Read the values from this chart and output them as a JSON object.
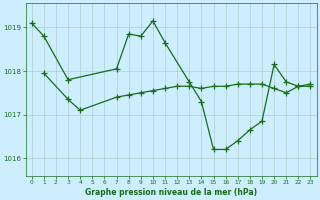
{
  "title": "Graphe pression niveau de la mer (hPa)",
  "bg_color": "#cceeff",
  "grid_color": "#b0cccc",
  "line_color": "#1a6b1a",
  "xlim": [
    -0.5,
    23.5
  ],
  "ylim": [
    1015.6,
    1019.55
  ],
  "yticks": [
    1016,
    1017,
    1018,
    1019
  ],
  "xticks": [
    0,
    1,
    2,
    3,
    4,
    5,
    6,
    7,
    8,
    9,
    10,
    11,
    12,
    13,
    14,
    15,
    16,
    17,
    18,
    19,
    20,
    21,
    22,
    23
  ],
  "line1_x": [
    0,
    1,
    3,
    7,
    8,
    9,
    10,
    11,
    13,
    14,
    15,
    16,
    17,
    18,
    19,
    20,
    21,
    22,
    23
  ],
  "line1_y": [
    1019.1,
    1018.8,
    1017.8,
    1018.05,
    1018.85,
    1018.8,
    1019.15,
    1018.65,
    1017.75,
    1017.3,
    1016.2,
    1016.2,
    1016.4,
    1016.65,
    1016.85,
    1018.15,
    1017.75,
    1017.65,
    1017.65
  ],
  "line2_x": [
    1,
    3,
    4,
    7,
    8,
    9,
    10,
    11,
    12,
    13,
    14,
    15,
    16,
    17,
    18,
    19,
    20,
    21,
    22,
    23
  ],
  "line2_y": [
    1017.95,
    1017.35,
    1017.1,
    1017.4,
    1017.45,
    1017.5,
    1017.55,
    1017.6,
    1017.65,
    1017.65,
    1017.6,
    1017.65,
    1017.65,
    1017.7,
    1017.7,
    1017.7,
    1017.6,
    1017.5,
    1017.65,
    1017.7
  ]
}
